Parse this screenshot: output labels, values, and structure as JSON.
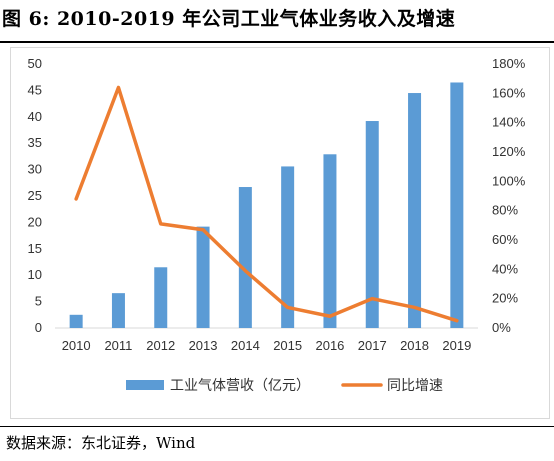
{
  "title": "图   6: 2010-2019 年公司工业气体业务收入及增速",
  "source": "数据来源：东北证券，Wind",
  "colors": {
    "bar": "#5b9bd5",
    "line": "#ed7d31",
    "axis": "#d9d9d9",
    "text": "#333333"
  },
  "chart_data": {
    "type": "bar",
    "categories": [
      "2010",
      "2011",
      "2012",
      "2013",
      "2014",
      "2015",
      "2016",
      "2017",
      "2018",
      "2019"
    ],
    "series": [
      {
        "name": "工业气体营收（亿元）",
        "type": "bar",
        "axis": "left",
        "values": [
          2.5,
          6.6,
          11.5,
          19.2,
          26.7,
          30.6,
          32.9,
          39.2,
          44.5,
          46.5
        ]
      },
      {
        "name": "同比增速",
        "type": "line",
        "axis": "right",
        "values": [
          0.88,
          1.64,
          0.71,
          0.67,
          0.39,
          0.14,
          0.08,
          0.2,
          0.14,
          0.05
        ]
      }
    ],
    "ylim": [
      0,
      50
    ],
    "y_ticks": [
      "0",
      "5",
      "10",
      "15",
      "20",
      "25",
      "30",
      "35",
      "40",
      "45",
      "50"
    ],
    "y2lim": [
      0,
      1.8
    ],
    "y2_ticks": [
      "0%",
      "20%",
      "40%",
      "60%",
      "80%",
      "100%",
      "120%",
      "140%",
      "160%",
      "180%"
    ],
    "grid": false,
    "legend_position": "bottom"
  }
}
